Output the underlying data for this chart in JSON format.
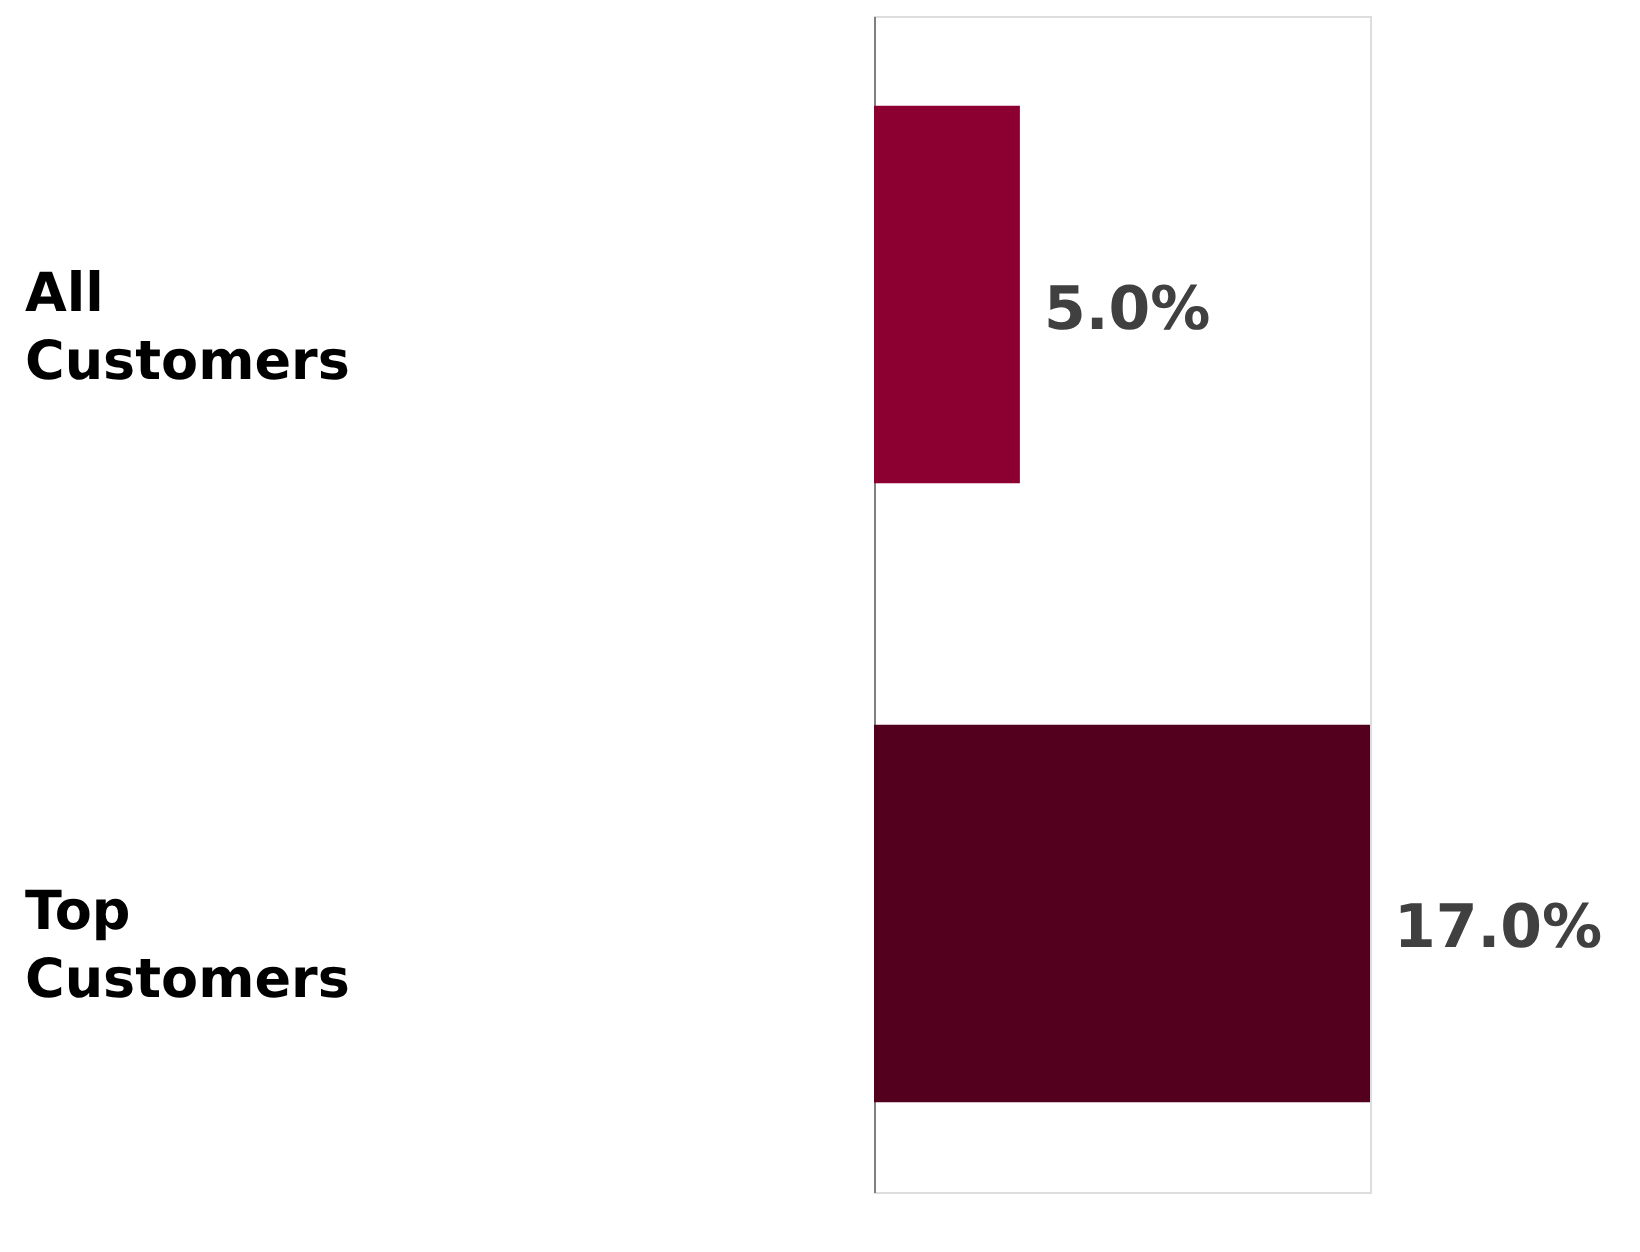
{
  "chart_data": {
    "type": "bar",
    "orientation": "horizontal",
    "tick_labels": "y",
    "categories": [
      "All Customers",
      "Top Customers"
    ],
    "values": [
      5.0,
      17.0
    ],
    "colors": [
      "#8b0030",
      "#52001e"
    ],
    "value_labels": [
      "5.0%",
      "17.0%"
    ]
  }
}
